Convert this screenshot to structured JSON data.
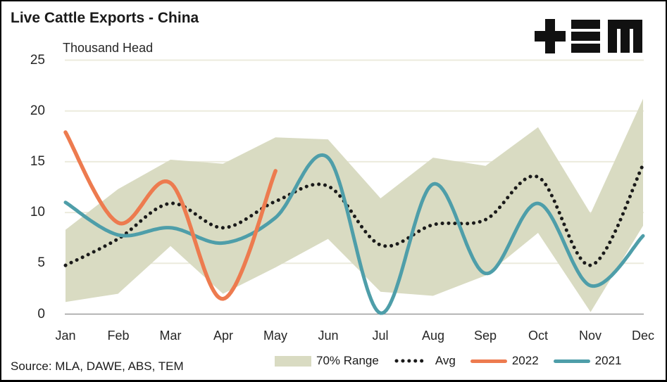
{
  "header": {
    "title": "Live Cattle Exports - China",
    "logo_alt": "TEM"
  },
  "footer": {
    "source": "Source: MLA, DAWE, ABS, TEM"
  },
  "legend": {
    "items": [
      {
        "label": "70% Range"
      },
      {
        "label": "Avg"
      },
      {
        "label": "2022"
      },
      {
        "label": "2021"
      }
    ]
  },
  "colors": {
    "band": "#D9DBC2",
    "avg": "#1A1A1A",
    "line_2022": "#ED7B4F",
    "line_2021": "#4E9EA9",
    "gridline": "#ECEBDD",
    "zero_line": "#9C9C9C",
    "text": "#1A1A1A",
    "logo": "#111111"
  },
  "chart_data": {
    "type": "line",
    "title": "Live Cattle Exports - China",
    "units_label": "Thousand Head",
    "categories": [
      "Jan",
      "Feb",
      "Mar",
      "Apr",
      "May",
      "Jun",
      "Jul",
      "Aug",
      "Sep",
      "Oct",
      "Nov",
      "Dec"
    ],
    "ylim": [
      0,
      25
    ],
    "y_ticks": [
      0,
      5,
      10,
      15,
      20,
      25
    ],
    "grid": "horizontal",
    "legend_position": "bottom",
    "series": [
      {
        "name": "70% Range",
        "type": "band",
        "color": "#D9DBC2",
        "upper": [
          8.3,
          12.3,
          15.2,
          14.8,
          17.4,
          17.2,
          11.4,
          15.4,
          14.6,
          18.4,
          9.9,
          21.2
        ],
        "lower": [
          1.2,
          2.0,
          6.7,
          2.0,
          4.6,
          7.4,
          2.2,
          1.8,
          3.8,
          8.0,
          0.2,
          8.7
        ]
      },
      {
        "name": "Avg",
        "type": "dotted-line",
        "color": "#1A1A1A",
        "values": [
          4.8,
          7.4,
          10.9,
          8.5,
          11.1,
          12.6,
          6.8,
          8.8,
          9.3,
          13.5,
          4.8,
          14.7
        ]
      },
      {
        "name": "2022",
        "type": "line",
        "color": "#ED7B4F",
        "values": [
          17.9,
          9.0,
          12.9,
          1.5,
          14.1,
          null,
          null,
          null,
          null,
          null,
          null,
          null
        ]
      },
      {
        "name": "2021",
        "type": "line",
        "color": "#4E9EA9",
        "values": [
          11.0,
          7.8,
          8.5,
          7.0,
          9.5,
          15.4,
          0.1,
          12.8,
          4.0,
          10.9,
          2.8,
          7.7
        ]
      }
    ]
  }
}
